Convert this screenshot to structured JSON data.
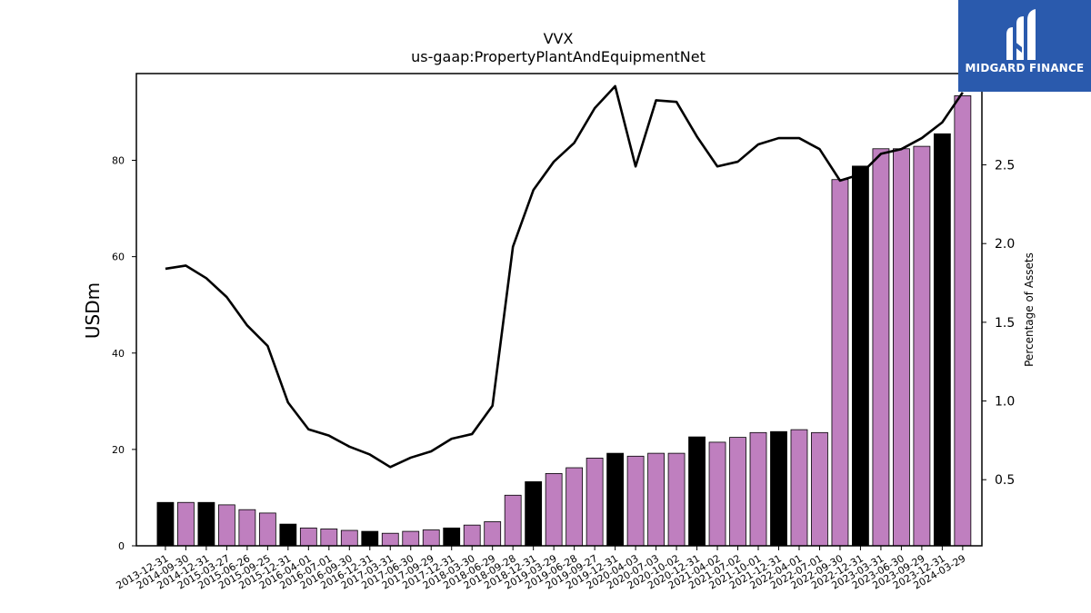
{
  "chart_data": {
    "type": "bar",
    "title": "VVX",
    "subtitle": "us-gaap:PropertyPlantAndEquipmentNet",
    "ylabel": "USDm",
    "y2label": "Percentage of Assets",
    "ylim": [
      0,
      98
    ],
    "y2lim": [
      0.08,
      3.08
    ],
    "yticks": [
      0,
      20,
      40,
      60,
      80
    ],
    "y2ticks": [
      0.5,
      1.0,
      1.5,
      2.0,
      2.5,
      3.0
    ],
    "y2ticklabels": [
      "0.5",
      "1.0",
      "1.5",
      "2.0",
      "2.5",
      "3.0"
    ],
    "colors": {
      "annual": "#000000",
      "quarter": "#bf7fbf",
      "line": "#000000"
    },
    "categories": [
      "2013-12-31",
      "2014-09-30",
      "2014-12-31",
      "2015-03-27",
      "2015-06-26",
      "2015-09-25",
      "2015-12-31",
      "2016-04-01",
      "2016-07-01",
      "2016-09-30",
      "2016-12-31",
      "2017-03-31",
      "2017-06-30",
      "2017-09-29",
      "2017-12-31",
      "2018-03-30",
      "2018-06-29",
      "2018-09-28",
      "2018-12-31",
      "2019-03-29",
      "2019-06-28",
      "2019-09-27",
      "2019-12-31",
      "2020-04-03",
      "2020-07-03",
      "2020-10-02",
      "2020-12-31",
      "2021-04-02",
      "2021-07-02",
      "2021-10-01",
      "2021-12-31",
      "2022-04-01",
      "2022-07-01",
      "2022-09-30",
      "2022-12-31",
      "2023-03-31",
      "2023-06-30",
      "2023-09-29",
      "2023-12-31",
      "2024-03-29"
    ],
    "series": [
      {
        "kind": "bar",
        "values": [
          9.0,
          9.0,
          9.0,
          8.5,
          7.5,
          6.8,
          4.5,
          3.7,
          3.5,
          3.2,
          3.0,
          2.6,
          3.0,
          3.3,
          3.7,
          4.3,
          5.0,
          10.5,
          13.3,
          15.0,
          16.2,
          18.2,
          19.2,
          18.6,
          19.2,
          19.2,
          22.6,
          21.5,
          22.5,
          23.5,
          23.7,
          24.1,
          23.5,
          76.0,
          78.8,
          82.4,
          82.4,
          82.9,
          85.5,
          93.4
        ],
        "annual": [
          true,
          false,
          true,
          false,
          false,
          false,
          true,
          false,
          false,
          false,
          true,
          false,
          false,
          false,
          true,
          false,
          false,
          false,
          true,
          false,
          false,
          false,
          true,
          false,
          false,
          false,
          true,
          false,
          false,
          false,
          true,
          false,
          false,
          false,
          true,
          false,
          false,
          false,
          true,
          false
        ]
      },
      {
        "kind": "line",
        "axis": "right",
        "values": [
          1.84,
          1.86,
          1.78,
          1.66,
          1.48,
          1.35,
          0.99,
          0.82,
          0.78,
          0.71,
          0.66,
          0.58,
          0.64,
          0.68,
          0.76,
          0.79,
          0.97,
          1.98,
          2.34,
          2.52,
          2.64,
          2.86,
          3.0,
          2.49,
          2.91,
          2.9,
          2.68,
          2.49,
          2.52,
          2.63,
          2.67,
          2.67,
          2.6,
          2.4,
          2.44,
          2.57,
          2.6,
          2.67,
          2.77,
          2.96
        ]
      }
    ]
  },
  "logo": {
    "text": "MIDGARD FINANCE"
  }
}
